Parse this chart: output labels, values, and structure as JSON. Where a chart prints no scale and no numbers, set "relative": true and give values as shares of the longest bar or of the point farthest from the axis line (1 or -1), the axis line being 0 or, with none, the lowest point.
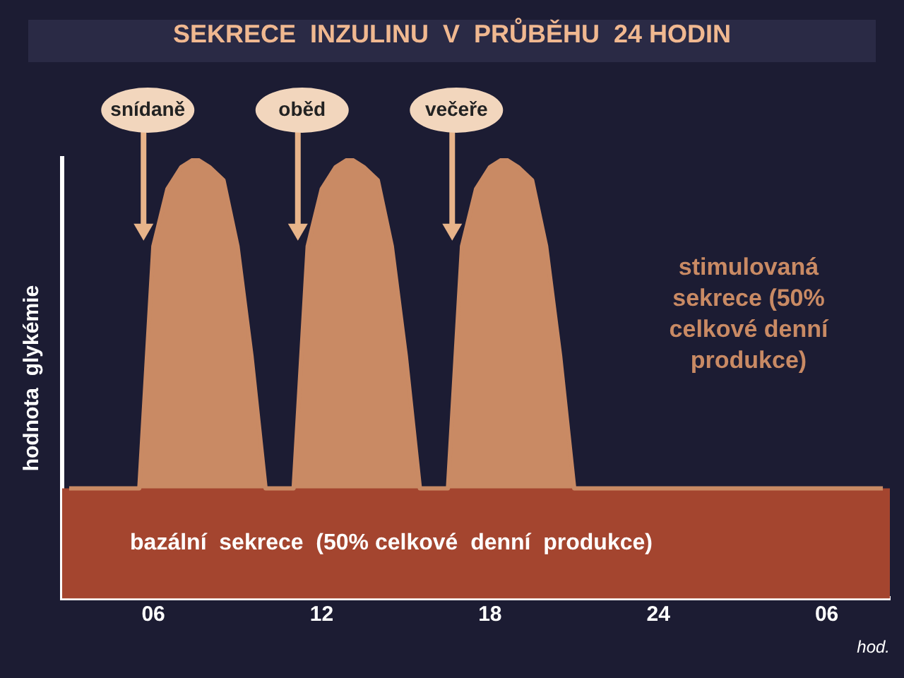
{
  "chart_data": {
    "type": "area",
    "title": "SEKRECE  INZULINU  V  PRŮBĚHU  24 HODIN",
    "xlabel": "hod.",
    "ylabel": "hodnota  glykémie",
    "relative": true,
    "legend": false,
    "grid": false,
    "categories": [
      null,
      null,
      null,
      null,
      null,
      null,
      "06",
      null,
      null,
      null,
      null,
      null,
      null,
      null,
      null,
      null,
      null,
      null,
      "12",
      null,
      null,
      null,
      null,
      null,
      null,
      null,
      null,
      null,
      null,
      null,
      "18",
      null,
      null,
      null,
      null,
      null,
      null,
      null,
      null,
      null,
      null,
      null,
      "24",
      null,
      null,
      null,
      null,
      null,
      null,
      null,
      null,
      null,
      null,
      null,
      "06",
      null,
      null,
      null,
      null
    ],
    "series": [
      {
        "name": "stimulovaná sekrece (50% celkové denní produkce)",
        "color": "#c98a64",
        "values": [
          0.25,
          0.25,
          0.25,
          0.25,
          0.25,
          0.25,
          0.8,
          0.93,
          0.98,
          1,
          0.98,
          0.95,
          0.8,
          0.55,
          0.25,
          0.25,
          0.25,
          0.8,
          0.93,
          0.98,
          1,
          0.98,
          0.95,
          0.8,
          0.55,
          0.25,
          0.25,
          0.25,
          0.8,
          0.93,
          0.98,
          1,
          0.98,
          0.95,
          0.8,
          0.55,
          0.25,
          0.25,
          0.25,
          0.25,
          0.25,
          0.25,
          0.25,
          0.25,
          0.25,
          0.25,
          0.25,
          0.25,
          0.25,
          0.25,
          0.25,
          0.25,
          0.25,
          0.25,
          0.25,
          0.25,
          0.25,
          0.25,
          0.25
        ]
      }
    ],
    "bands": [
      {
        "axis": "y",
        "from": 0,
        "to": 0.25,
        "label": "bazální  sekrece  (50% celkové  denní  produkce)",
        "color": "#a4452f"
      }
    ],
    "annotations": [
      "snídaně",
      "oběd",
      "večeře"
    ]
  }
}
